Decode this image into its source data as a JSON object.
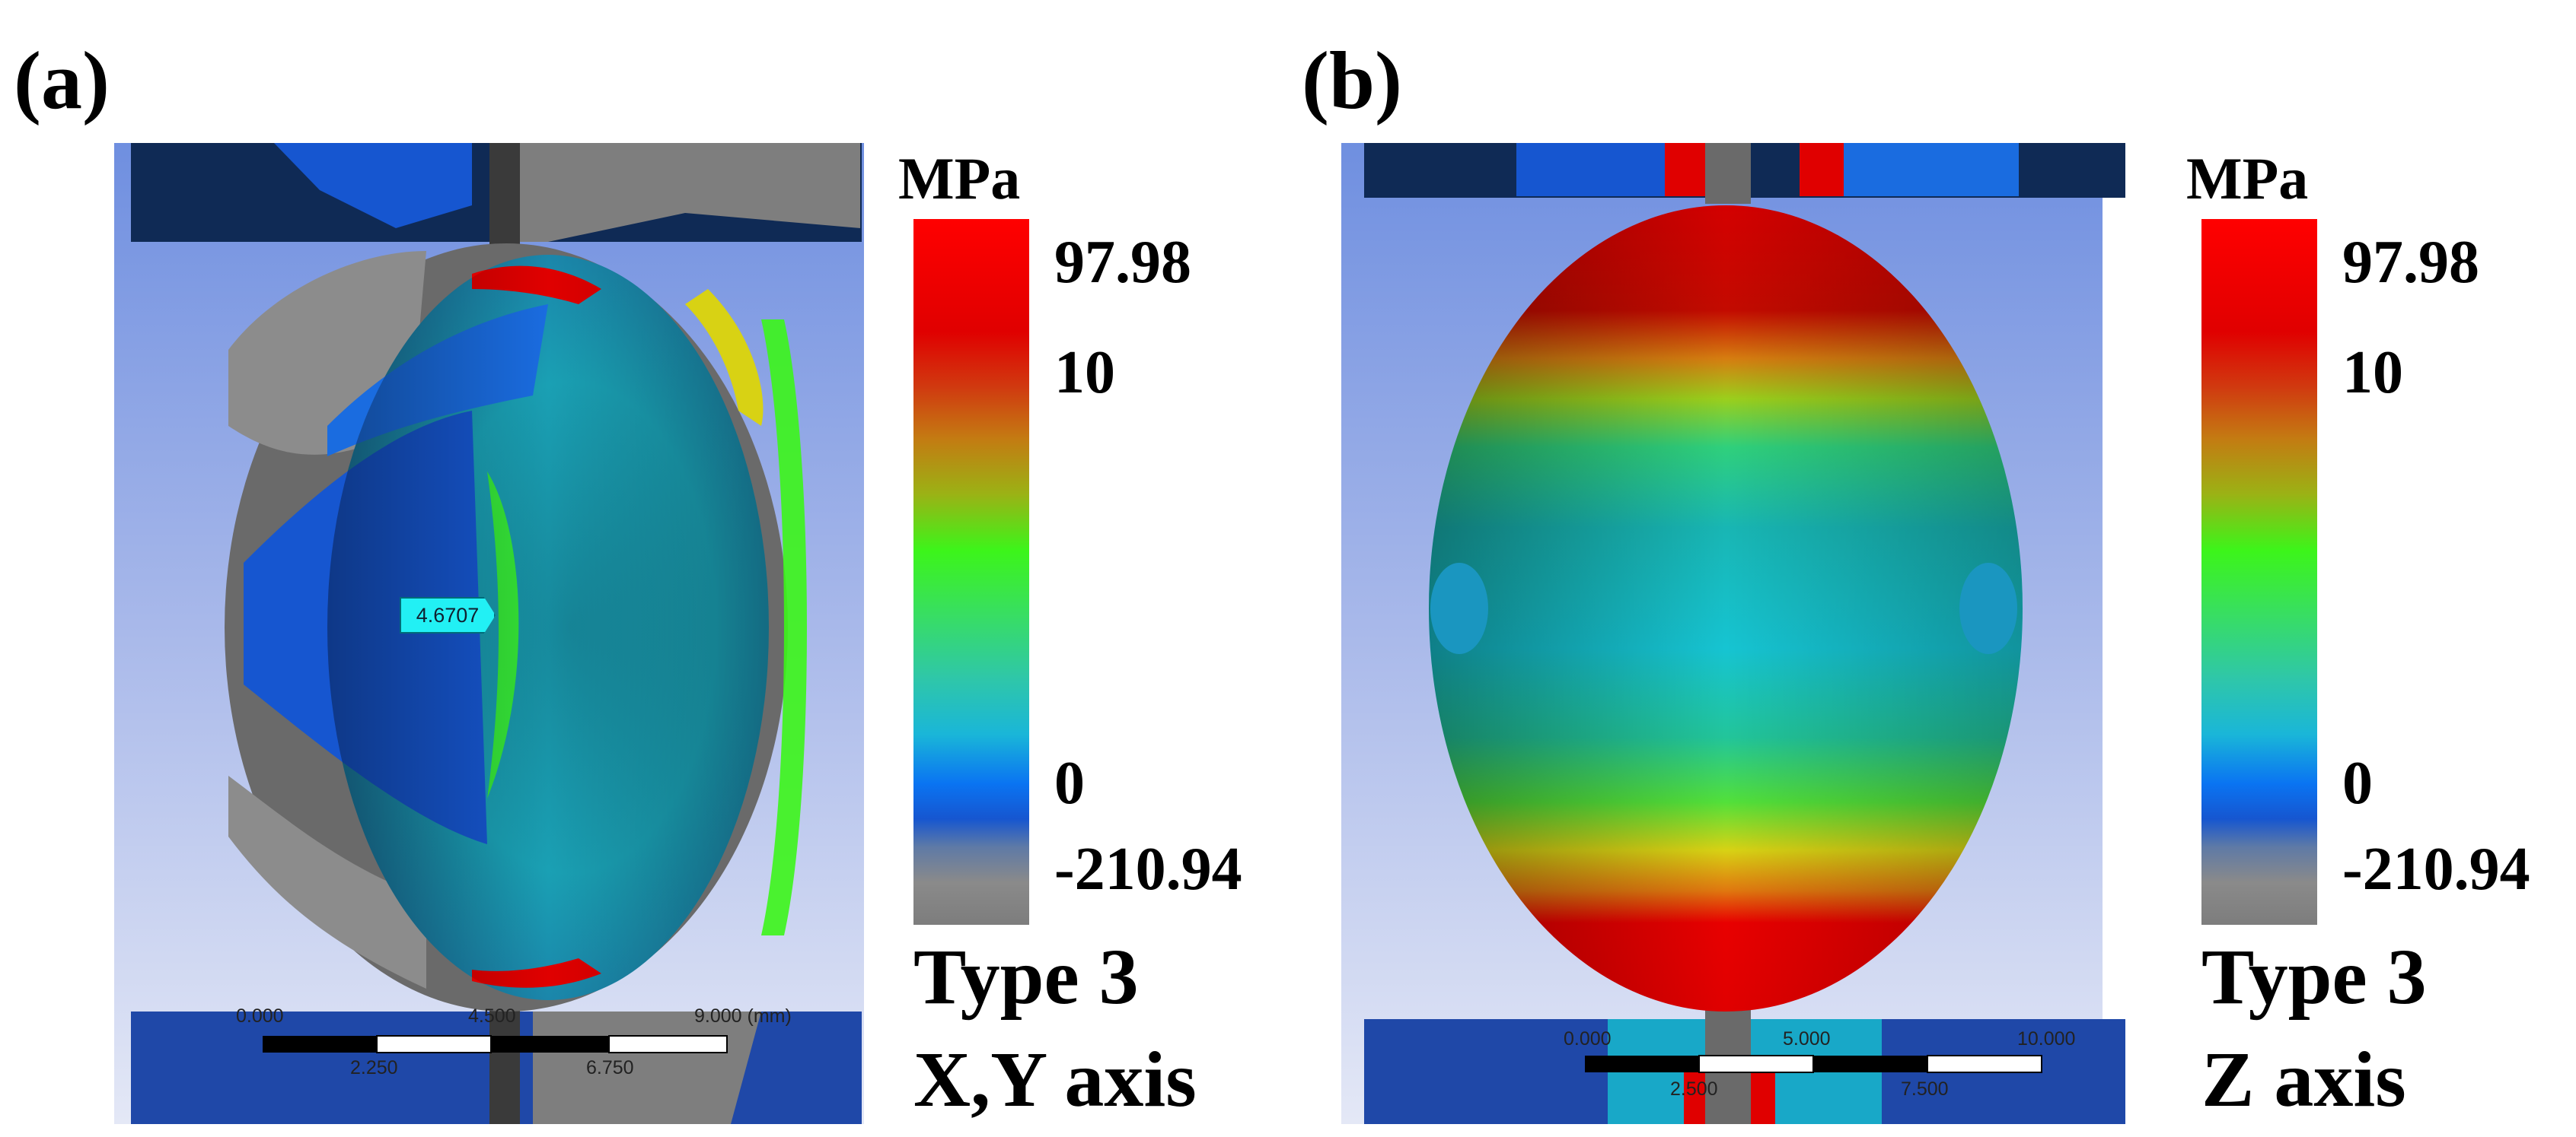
{
  "panels": [
    {
      "label": "(a)",
      "legend": {
        "unit": "MPa",
        "ticks": [
          "97.98",
          "10",
          "0",
          "-210.94"
        ],
        "colors": [
          "#ff0000",
          "#c47a12",
          "#3cf51a",
          "#1ab6d8",
          "#0a74f2",
          "#7d7d7d"
        ]
      },
      "caption_line1": "Type 3",
      "caption_line2": "X,Y axis",
      "probe_value": "4.6707",
      "scale_bar": {
        "top_labels": [
          "0.000",
          "4.500",
          "9.000 (mm)"
        ],
        "bottom_labels": [
          "2.250",
          "6.750"
        ]
      }
    },
    {
      "label": "(b)",
      "legend": {
        "unit": "MPa",
        "ticks": [
          "97.98",
          "10",
          "0",
          "-210.94"
        ],
        "colors": [
          "#ff0000",
          "#c47a12",
          "#3cf51a",
          "#1ab6d8",
          "#0a74f2",
          "#7d7d7d"
        ]
      },
      "caption_line1": "Type 3",
      "caption_line2": "Z axis",
      "scale_bar": {
        "top_labels": [
          "0.000",
          "5.000",
          "10.000"
        ],
        "bottom_labels": [
          "2.500",
          "7.500"
        ]
      }
    }
  ]
}
